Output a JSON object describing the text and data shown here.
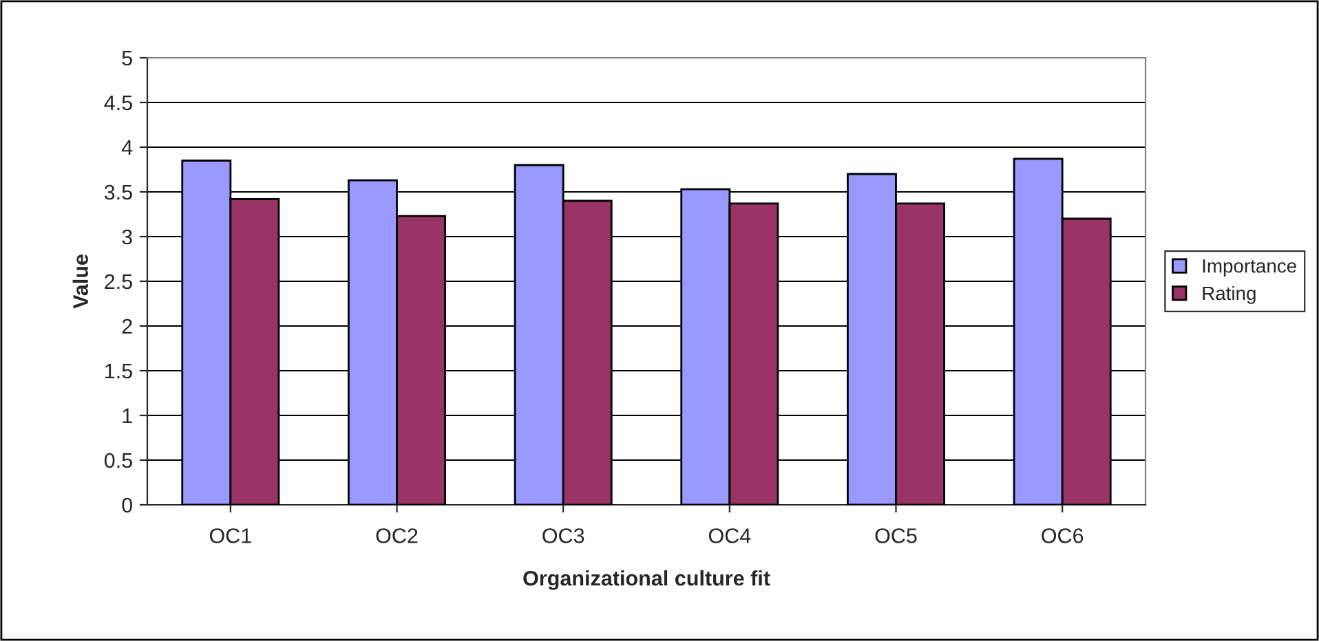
{
  "chart_data": {
    "type": "bar",
    "xlabel": "Organizational culture fit",
    "ylabel": "Value",
    "categories": [
      "OC1",
      "OC2",
      "OC3",
      "OC4",
      "OC5",
      "OC6"
    ],
    "series": [
      {
        "name": "Importance",
        "color": "#9999ff",
        "values": [
          3.85,
          3.63,
          3.8,
          3.53,
          3.7,
          3.87
        ]
      },
      {
        "name": "Rating",
        "color": "#993366",
        "values": [
          3.42,
          3.23,
          3.4,
          3.37,
          3.37,
          3.2
        ]
      }
    ],
    "ylim": [
      0,
      5
    ],
    "yticks": [
      0,
      0.5,
      1,
      1.5,
      2,
      2.5,
      3,
      3.5,
      4,
      4.5,
      5
    ],
    "grid": "y",
    "legend": "right"
  }
}
